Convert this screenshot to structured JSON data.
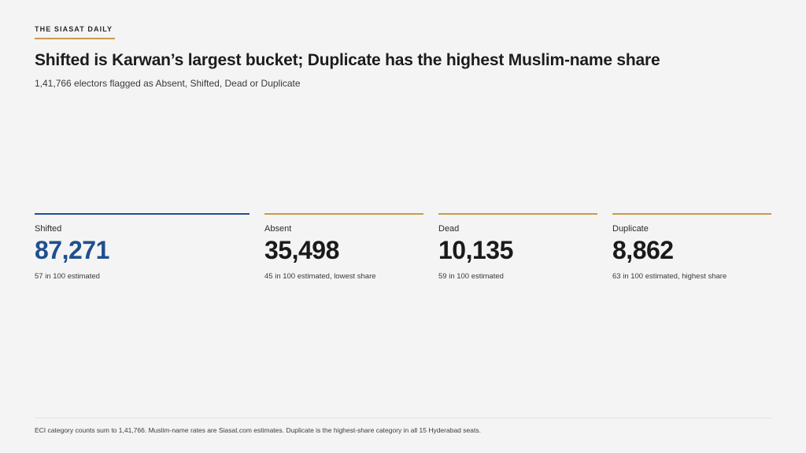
{
  "brand": {
    "name": "THE SIASAT DAILY",
    "accent_color": "#c79a4a"
  },
  "headline": "Shifted is Karwan’s largest bucket; Duplicate has the highest Muslim-name share",
  "subhead": "1,41,766 electors flagged as Absent, Shifted, Dead or Duplicate",
  "stats": [
    {
      "label": "Shifted",
      "value": "87,271",
      "note": "57 in 100 estimated",
      "highlight": true,
      "color": "#1e4f8f"
    },
    {
      "label": "Absent",
      "value": "35,498",
      "note": "45 in 100 estimated, lowest share",
      "highlight": false,
      "color": "#c79a4a"
    },
    {
      "label": "Dead",
      "value": "10,135",
      "note": "59 in 100 estimated",
      "highlight": false,
      "color": "#c79a4a"
    },
    {
      "label": "Duplicate",
      "value": "8,862",
      "note": "63 in 100 estimated, highest share",
      "highlight": false,
      "color": "#c79a4a"
    }
  ],
  "footer": "ECI category counts sum to 1,41,766. Muslim-name rates are Siasat.com estimates. Duplicate is the highest-share category in all 15 Hyderabad seats."
}
